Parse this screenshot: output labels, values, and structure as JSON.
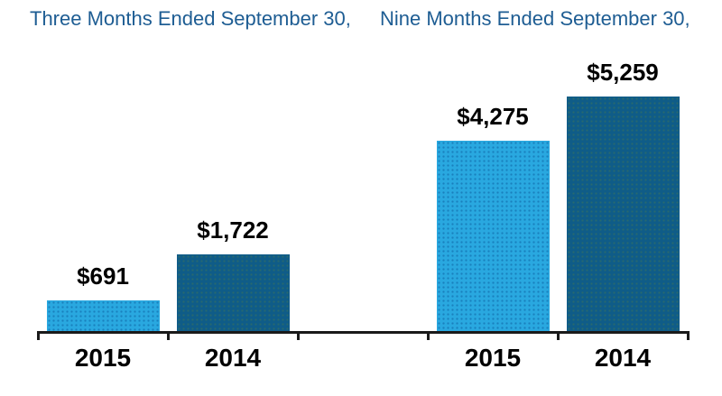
{
  "chart_data": {
    "type": "bar",
    "title": "",
    "xlabel": "",
    "ylabel": "",
    "ylim": [
      0,
      5600
    ],
    "grid": false,
    "legend": "none",
    "value_prefix": "$",
    "groups": [
      {
        "title": "Three Months Ended September 30,",
        "categories": [
          "2015",
          "2014"
        ],
        "bars": [
          {
            "year": "2015",
            "value": 691,
            "label": "$691"
          },
          {
            "year": "2014",
            "value": 1722,
            "label": "$1,722"
          }
        ]
      },
      {
        "title": "Nine Months Ended September 30,",
        "categories": [
          "2015",
          "2014"
        ],
        "bars": [
          {
            "year": "2015",
            "value": 4275,
            "label": "$4,275"
          },
          {
            "year": "2014",
            "value": 5259,
            "label": "$5,259"
          }
        ]
      }
    ],
    "colors": {
      "2015": "#29A8E0",
      "2014": "#0F5C88",
      "title_text": "#1E5D93",
      "label_text": "#000000",
      "axis": "#1A1A1A"
    }
  }
}
